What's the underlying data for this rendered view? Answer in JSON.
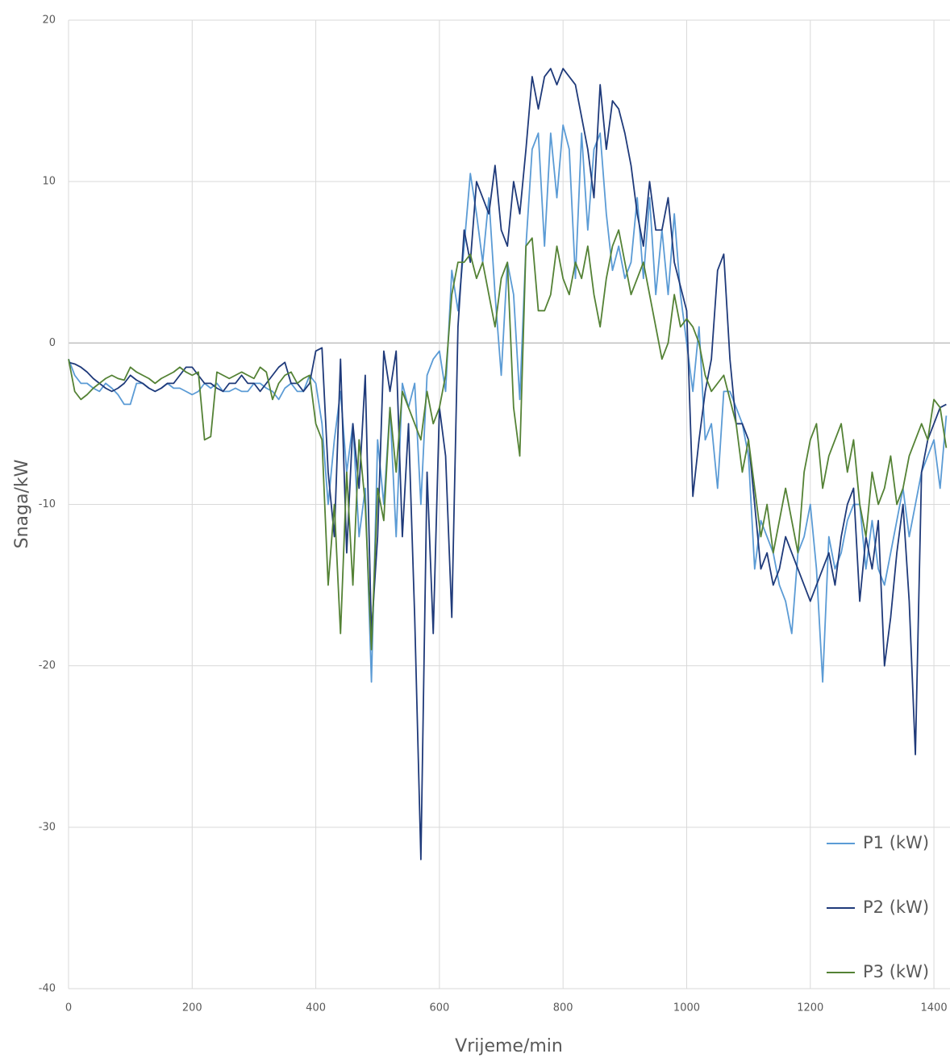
{
  "chart_data": {
    "type": "line",
    "x_label": "Vrijeme/min",
    "y_label": "Snaga/kW",
    "xlim": [
      0,
      1426
    ],
    "ylim": [
      -40,
      20
    ],
    "xticks": [
      0,
      200,
      400,
      600,
      800,
      1000,
      1200,
      1400
    ],
    "yticks": [
      -40,
      -30,
      -20,
      -10,
      0,
      10,
      20
    ],
    "grid": true,
    "legend": "bottom-right",
    "x": [
      0,
      10,
      20,
      30,
      40,
      50,
      60,
      70,
      80,
      90,
      100,
      110,
      120,
      130,
      140,
      150,
      160,
      170,
      180,
      190,
      200,
      210,
      220,
      230,
      240,
      250,
      260,
      270,
      280,
      290,
      300,
      310,
      320,
      330,
      340,
      350,
      360,
      370,
      380,
      390,
      400,
      410,
      420,
      430,
      440,
      450,
      460,
      470,
      480,
      490,
      500,
      510,
      520,
      530,
      540,
      550,
      560,
      570,
      580,
      590,
      600,
      610,
      620,
      630,
      640,
      650,
      660,
      670,
      680,
      690,
      700,
      710,
      720,
      730,
      740,
      750,
      760,
      770,
      780,
      790,
      800,
      810,
      820,
      830,
      840,
      850,
      860,
      870,
      880,
      890,
      900,
      910,
      920,
      930,
      940,
      950,
      960,
      970,
      980,
      990,
      1000,
      1010,
      1020,
      1030,
      1040,
      1050,
      1060,
      1070,
      1080,
      1090,
      1100,
      1110,
      1120,
      1130,
      1140,
      1150,
      1160,
      1170,
      1180,
      1190,
      1200,
      1210,
      1220,
      1230,
      1240,
      1250,
      1260,
      1270,
      1280,
      1290,
      1300,
      1310,
      1320,
      1330,
      1340,
      1350,
      1360,
      1370,
      1380,
      1390,
      1400,
      1410,
      1420
    ],
    "series": [
      {
        "name": "P1 (kW)",
        "color": "#5b9bd5",
        "values": [
          -1,
          -2,
          -2.5,
          -2.5,
          -2.8,
          -3,
          -2.5,
          -2.8,
          -3.2,
          -3.8,
          -3.8,
          -2.5,
          -2.5,
          -2.8,
          -3,
          -2.8,
          -2.5,
          -2.8,
          -2.8,
          -3,
          -3.2,
          -3,
          -2.5,
          -2.8,
          -2.5,
          -3,
          -3,
          -2.8,
          -3,
          -3,
          -2.5,
          -2.5,
          -2.8,
          -3,
          -3.5,
          -2.8,
          -2.5,
          -3,
          -3,
          -2,
          -2.5,
          -5,
          -10,
          -6,
          -3,
          -8,
          -5,
          -12,
          -9,
          -21,
          -6,
          -10,
          -4,
          -12,
          -2.5,
          -4,
          -2.5,
          -10,
          -2,
          -1,
          -0.5,
          -3,
          4.5,
          2,
          6,
          10.5,
          8,
          5,
          9,
          3,
          -2,
          5,
          3,
          -3.5,
          6,
          12,
          13,
          6,
          13,
          9,
          13.5,
          12,
          4,
          13,
          7,
          12,
          13,
          8,
          4.5,
          6,
          4,
          5,
          9,
          4,
          9,
          3,
          7,
          3,
          8,
          3,
          0,
          -3,
          1,
          -6,
          -5,
          -9,
          -3,
          -3,
          -4,
          -5,
          -7,
          -14,
          -11,
          -12,
          -13,
          -15,
          -16,
          -18,
          -13,
          -12,
          -10,
          -14,
          -21,
          -12,
          -14,
          -13,
          -11,
          -10,
          -10,
          -14,
          -11,
          -14,
          -15,
          -13,
          -11,
          -9,
          -12,
          -10,
          -8,
          -7,
          -6,
          -9,
          -4.5
        ]
      },
      {
        "name": "P2 (kW)",
        "color": "#1f3a7a",
        "values": [
          -1.2,
          -1.3,
          -1.5,
          -1.8,
          -2.2,
          -2.5,
          -2.8,
          -3,
          -2.8,
          -2.5,
          -2,
          -2.3,
          -2.5,
          -2.8,
          -3,
          -2.8,
          -2.5,
          -2.5,
          -2,
          -1.5,
          -1.5,
          -2,
          -2.5,
          -2.5,
          -2.8,
          -3,
          -2.5,
          -2.5,
          -2,
          -2.5,
          -2.5,
          -3,
          -2.5,
          -2,
          -1.5,
          -1.2,
          -2.5,
          -2.5,
          -3,
          -2.5,
          -0.5,
          -0.3,
          -8,
          -12,
          -1,
          -13,
          -5,
          -9,
          -2,
          -18,
          -12,
          -0.5,
          -3,
          -0.5,
          -12,
          -5,
          -17,
          -32,
          -8,
          -18,
          -4,
          -7,
          -17,
          1,
          7,
          5,
          10,
          9,
          8,
          11,
          7,
          6,
          10,
          8,
          12,
          16.5,
          14.5,
          16.5,
          17,
          16,
          17,
          16.5,
          16,
          14,
          12,
          9,
          16,
          12,
          15,
          14.5,
          13,
          11,
          8,
          6,
          10,
          7,
          7,
          9,
          5,
          3.5,
          2,
          -9.5,
          -6,
          -3,
          -1,
          4.5,
          5.5,
          -1,
          -5,
          -5,
          -6,
          -10,
          -14,
          -13,
          -15,
          -14,
          -12,
          -13,
          -14,
          -15,
          -16,
          -15,
          -14,
          -13,
          -15,
          -12,
          -10,
          -9,
          -16,
          -12,
          -14,
          -11,
          -20,
          -17,
          -13,
          -10,
          -16,
          -25.5,
          -8,
          -6,
          -5,
          -4,
          -3.8
        ]
      },
      {
        "name": "P3 (kW)",
        "color": "#548235",
        "values": [
          -1,
          -3,
          -3.5,
          -3.2,
          -2.8,
          -2.5,
          -2.2,
          -2,
          -2.2,
          -2.3,
          -1.5,
          -1.8,
          -2,
          -2.2,
          -2.5,
          -2.2,
          -2,
          -1.8,
          -1.5,
          -1.8,
          -2,
          -1.8,
          -6,
          -5.8,
          -1.8,
          -2,
          -2.2,
          -2,
          -1.8,
          -2,
          -2.2,
          -1.5,
          -1.8,
          -3.5,
          -2.5,
          -2,
          -1.8,
          -2.5,
          -2.2,
          -2,
          -5,
          -6,
          -15,
          -10,
          -18,
          -8,
          -15,
          -6,
          -10,
          -19,
          -9,
          -11,
          -4,
          -8,
          -3,
          -4,
          -5,
          -6,
          -3,
          -5,
          -4,
          -2,
          3,
          5,
          5,
          5.5,
          4,
          5,
          3,
          1,
          4,
          5,
          -4,
          -7,
          6,
          6.5,
          2,
          2,
          3,
          6,
          4,
          3,
          5,
          4,
          6,
          3,
          1,
          4,
          6,
          7,
          5,
          3,
          4,
          5,
          3,
          1,
          -1,
          0,
          3,
          1,
          1.5,
          1,
          0,
          -2,
          -3,
          -2.5,
          -2,
          -3.5,
          -5,
          -8,
          -6,
          -9,
          -12,
          -10,
          -13,
          -11,
          -9,
          -11,
          -13,
          -8,
          -6,
          -5,
          -9,
          -7,
          -6,
          -5,
          -8,
          -6,
          -10,
          -12,
          -8,
          -10,
          -9,
          -7,
          -10,
          -9,
          -7,
          -6,
          -5,
          -6,
          -3.5,
          -4,
          -6.5
        ]
      }
    ]
  }
}
